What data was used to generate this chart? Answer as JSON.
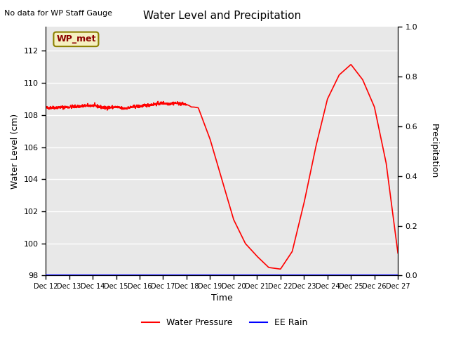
{
  "title": "Water Level and Precipitation",
  "subtitle": "No data for WP Staff Gauge",
  "xlabel": "Time",
  "ylabel_left": "Water Level (cm)",
  "ylabel_right": "Precipitation",
  "annotation": "WP_met",
  "ylim_left": [
    98,
    113.5
  ],
  "ylim_right": [
    0.0,
    1.0
  ],
  "yticks_left": [
    98,
    100,
    102,
    104,
    106,
    108,
    110,
    112
  ],
  "yticks_right": [
    0.0,
    0.2,
    0.4,
    0.6,
    0.8,
    1.0
  ],
  "x_tick_labels": [
    "Dec 12",
    "Dec 13",
    "Dec 14",
    "Dec 15",
    "Dec 16",
    "Dec 17",
    "Dec 18",
    "Dec 19",
    "Dec 20",
    "Dec 21",
    "Dec 22",
    "Dec 23",
    "Dec 24",
    "Dec 25",
    "Dec 26",
    "Dec 27"
  ],
  "legend_labels": [
    "Water Pressure",
    "EE Rain"
  ],
  "legend_colors": [
    "red",
    "blue"
  ],
  "line_color": "red",
  "rain_color": "blue",
  "background_color": "#e8e8e8",
  "ctrl_x": [
    0,
    1,
    2,
    2.5,
    3,
    3.3,
    3.5,
    3.7,
    4,
    4.3,
    4.5,
    4.8,
    5,
    5.2,
    5.5,
    5.8,
    6,
    6.1,
    6.2,
    6.3,
    6.5,
    7,
    7.5,
    8,
    8.5,
    9,
    9.5,
    10,
    10.5,
    11,
    11.5,
    12,
    12.5,
    13,
    13.5,
    14,
    14.5,
    15
  ],
  "ctrl_y": [
    108.45,
    108.5,
    108.6,
    108.45,
    108.5,
    108.4,
    108.45,
    108.5,
    108.55,
    108.6,
    108.65,
    108.7,
    108.75,
    108.7,
    108.75,
    108.7,
    108.65,
    108.6,
    108.5,
    108.5,
    108.45,
    106.5,
    104.0,
    101.5,
    100.0,
    99.2,
    98.5,
    98.4,
    99.5,
    102.5,
    106.0,
    109.0,
    110.5,
    111.15,
    110.2,
    108.5,
    105.0,
    99.4
  ]
}
